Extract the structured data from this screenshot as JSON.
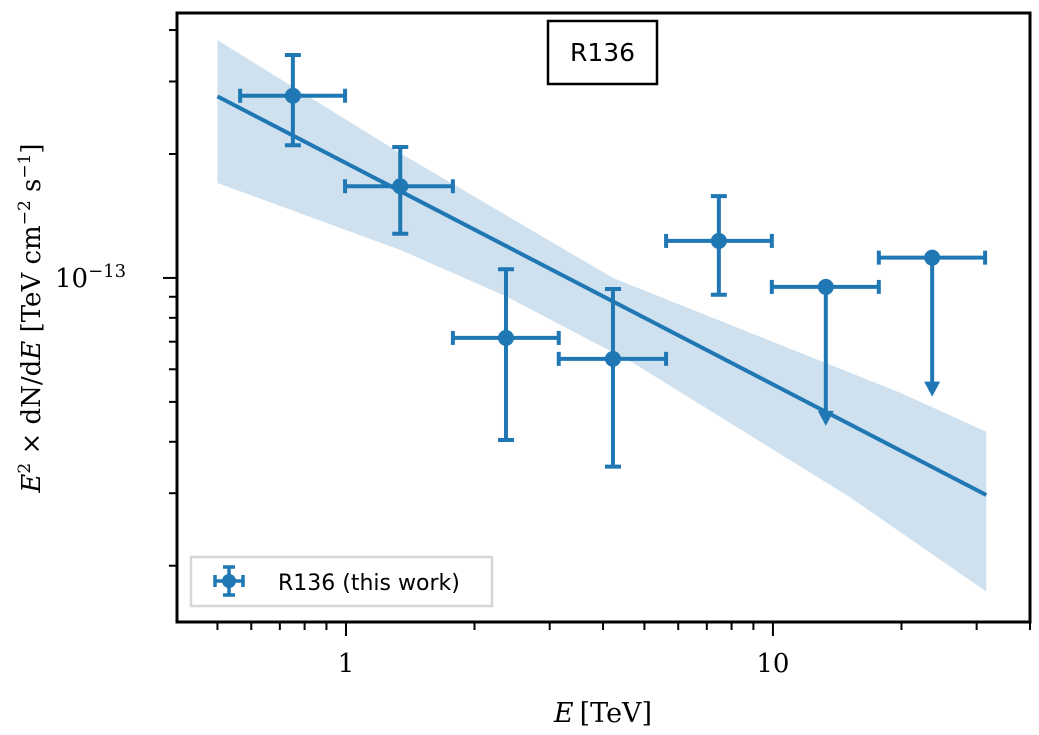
{
  "chart_data": {
    "type": "scatter",
    "title": "",
    "annotation": "R136",
    "xlabel": "E [TeV]",
    "xlabel_italic": "E",
    "xlabel_unit": "[TeV]",
    "ylabel_parts": {
      "e": "E",
      "sup2": "2",
      "times": " × dN/d",
      "e2": "E",
      "unit": " [TeV cm",
      "m2": "−2",
      "s": " s",
      "m1": "−1",
      "close": "]"
    },
    "xscale": "log",
    "yscale": "log",
    "xlim": [
      0.402,
      40.0
    ],
    "ylim": [
      1.46e-14,
      4.4e-13
    ],
    "xticks": [
      {
        "value": 1,
        "label": "1"
      },
      {
        "value": 10,
        "label": "10"
      }
    ],
    "yticks": [
      {
        "value": 1e-13,
        "base": "10",
        "exp": "−13"
      }
    ],
    "legend": {
      "position": "lower-left",
      "entries": [
        "R136 (this work)"
      ]
    },
    "colors": {
      "series": "#1f77b4",
      "band": "#cfe1ef"
    },
    "series": [
      {
        "name": "R136 (this work)",
        "points": [
          {
            "x": 0.751,
            "xlo": 0.565,
            "xhi": 0.995,
            "y": 2.77e-13,
            "ylo": 2.1e-13,
            "yhi": 3.48e-13,
            "ul": false
          },
          {
            "x": 1.34,
            "xlo": 0.995,
            "xhi": 1.78,
            "y": 1.67e-13,
            "ylo": 1.28e-13,
            "yhi": 2.08e-13,
            "ul": false
          },
          {
            "x": 2.37,
            "xlo": 1.78,
            "xhi": 3.15,
            "y": 7.15e-14,
            "ylo": 4.04e-14,
            "yhi": 1.05e-13,
            "ul": false
          },
          {
            "x": 4.22,
            "xlo": 3.15,
            "xhi": 5.62,
            "y": 6.36e-14,
            "ylo": 3.48e-14,
            "yhi": 9.4e-14,
            "ul": false
          },
          {
            "x": 7.47,
            "xlo": 5.62,
            "xhi": 9.94,
            "y": 1.23e-13,
            "ylo": 9.1e-14,
            "yhi": 1.58e-13,
            "ul": false
          },
          {
            "x": 13.3,
            "xlo": 9.94,
            "xhi": 17.7,
            "y": 9.51e-14,
            "ul": true
          },
          {
            "x": 23.6,
            "xlo": 17.7,
            "xhi": 31.4,
            "y": 1.12e-13,
            "ul": true
          }
        ]
      }
    ],
    "model": {
      "line": [
        {
          "x": 0.5,
          "y": 2.76e-13
        },
        {
          "x": 31.6,
          "y": 2.97e-14
        }
      ],
      "band_upper": [
        {
          "x": 0.5,
          "y": 3.78e-13
        },
        {
          "x": 1.34,
          "y": 2.01e-13
        },
        {
          "x": 4.22,
          "y": 1e-13
        },
        {
          "x": 19.9,
          "y": 5.26e-14
        },
        {
          "x": 31.6,
          "y": 4.23e-14
        }
      ],
      "band_lower": [
        {
          "x": 0.5,
          "y": 1.7e-13
        },
        {
          "x": 1.34,
          "y": 1.17e-13
        },
        {
          "x": 2.38,
          "y": 9e-14
        },
        {
          "x": 4.7,
          "y": 6.22e-14
        },
        {
          "x": 15.1,
          "y": 2.94e-14
        },
        {
          "x": 31.6,
          "y": 1.73e-14
        }
      ]
    }
  }
}
